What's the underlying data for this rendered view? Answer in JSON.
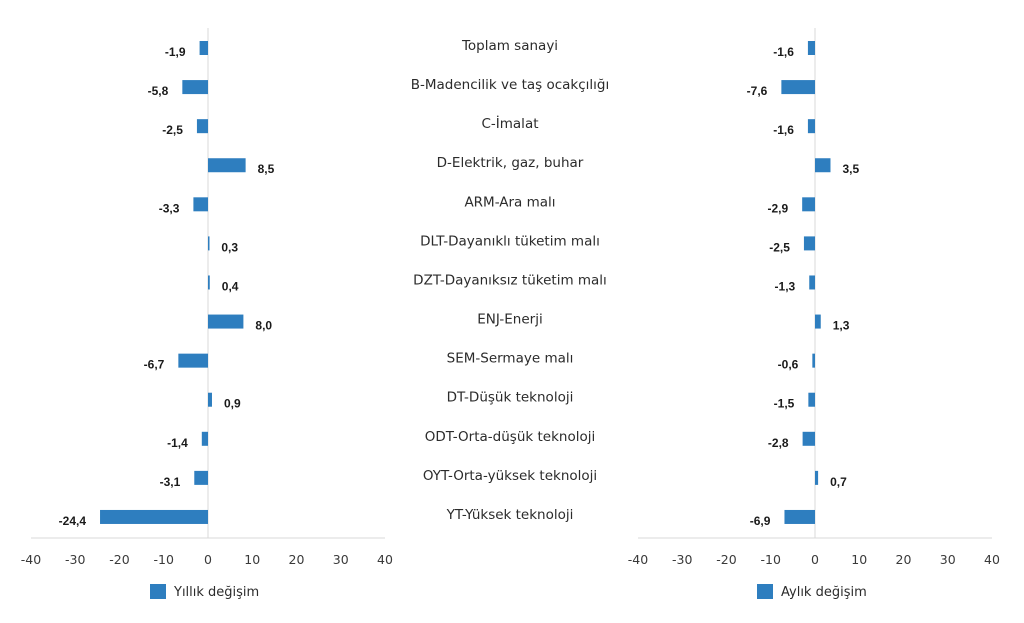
{
  "chart_data": [
    {
      "type": "bar",
      "orientation": "horizontal",
      "title": "",
      "xlabel": "",
      "ylabel": "",
      "xlim": [
        -40,
        40
      ],
      "xticks": [
        -40,
        -30,
        -20,
        -10,
        0,
        10,
        20,
        30,
        40
      ],
      "grid": false,
      "legend": {
        "position": "bottom",
        "entries": [
          "Yıllık değişim"
        ]
      },
      "series": [
        {
          "name": "Yıllık değişim",
          "color": "#2E7EBF",
          "values": [
            -1.9,
            -5.8,
            -2.5,
            8.5,
            -3.3,
            0.3,
            0.4,
            8.0,
            -6.7,
            0.9,
            -1.4,
            -3.1,
            -24.4
          ],
          "labels": [
            "-1,9",
            "-5,8",
            "-2,5",
            "8,5",
            "-3,3",
            "0,3",
            "0,4",
            "8,0",
            "-6,7",
            "0,9",
            "-1,4",
            "-3,1",
            "-24,4"
          ]
        }
      ]
    },
    {
      "type": "bar",
      "orientation": "horizontal",
      "title": "",
      "xlabel": "",
      "ylabel": "",
      "xlim": [
        -40,
        40
      ],
      "xticks": [
        -40,
        -30,
        -20,
        -10,
        0,
        10,
        20,
        30,
        40
      ],
      "grid": false,
      "legend": {
        "position": "bottom",
        "entries": [
          "Aylık değişim"
        ]
      },
      "series": [
        {
          "name": "Aylık değişim",
          "color": "#2E7EBF",
          "values": [
            -1.6,
            -7.6,
            -1.6,
            3.5,
            -2.9,
            -2.5,
            -1.3,
            1.3,
            -0.6,
            -1.5,
            -2.8,
            0.7,
            -6.9
          ],
          "labels": [
            "-1,6",
            "-7,6",
            "-1,6",
            "3,5",
            "-2,9",
            "-2,5",
            "-1,3",
            "1,3",
            "-0,6",
            "-1,5",
            "-2,8",
            "0,7",
            "-6,9"
          ]
        }
      ]
    }
  ],
  "categories": [
    "Toplam sanayi",
    "B-Madencilik ve taş ocakçılığı",
    "C-İmalat",
    "D-Elektrik, gaz, buhar",
    "ARM-Ara malı",
    "DLT-Dayanıklı tüketim malı",
    "DZT-Dayanıksız tüketim malı",
    "ENJ-Enerji",
    "SEM-Sermaye malı",
    "DT-Düşük teknoloji",
    "ODT-Orta-düşük teknoloji",
    "OYT-Orta-yüksek teknoloji",
    "YT-Yüksek teknoloji"
  ],
  "tick_labels": [
    "-40",
    "-30",
    "-20",
    "-10",
    "0",
    "10",
    "20",
    "30",
    "40"
  ]
}
